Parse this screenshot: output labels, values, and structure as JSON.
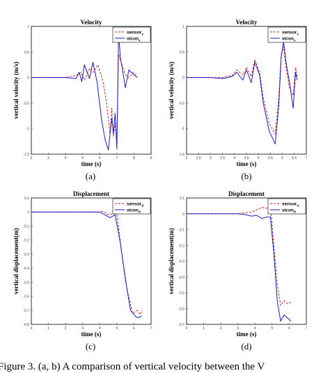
{
  "chart_data": [
    {
      "type": "line",
      "title": "Velocity",
      "panel_label": "(a)",
      "xlabel": "time (s)",
      "ylabel": "vertical velocity (m/s)",
      "xlim": [
        2,
        9
      ],
      "ylim": [
        -1.5,
        1
      ],
      "xticks": [
        "2",
        "3",
        "4",
        "5",
        "6",
        "7",
        "8",
        "9"
      ],
      "yticks": [
        "1",
        "0.5",
        "0",
        "-0.5",
        "-1",
        "-1.5"
      ],
      "ytick_values": [
        1,
        0.5,
        0,
        -0.5,
        -1,
        -1.5
      ],
      "legend": "top-right",
      "series": [
        {
          "name": "sensor",
          "sub": "v",
          "color": "#d62020",
          "dash": "3,2",
          "x": [
            2,
            3,
            4,
            4.6,
            4.9,
            5.1,
            5.4,
            5.6,
            5.9,
            6.2,
            6.4,
            6.6,
            6.7,
            6.8,
            6.9,
            7,
            7.1,
            7.3,
            7.5,
            7.7,
            8,
            8.2
          ],
          "y": [
            0,
            0,
            0,
            0.04,
            0.1,
            -0.05,
            0.18,
            0.1,
            0.25,
            -0.1,
            -0.5,
            -1.1,
            -0.6,
            -1.15,
            -0.9,
            -1.2,
            0.45,
            0.25,
            0.05,
            0,
            0.1,
            0
          ]
        },
        {
          "name": "vicon",
          "sub": "v",
          "color": "#1a1acc",
          "dash": "",
          "x": [
            2,
            3,
            4,
            4.6,
            4.8,
            4.95,
            5.1,
            5.4,
            5.6,
            5.85,
            6.1,
            6.3,
            6.5,
            6.7,
            6.8,
            6.9,
            7,
            7.1,
            7.2,
            7.35,
            7.5,
            7.7,
            8,
            8.2
          ],
          "y": [
            0,
            0,
            0,
            -0.02,
            0.1,
            -0.08,
            0.25,
            -0.02,
            0.3,
            -0.1,
            -0.8,
            -1.2,
            -1.42,
            -0.8,
            -1.1,
            -0.7,
            -1.4,
            0.9,
            0.4,
            0.1,
            -0.2,
            0.15,
            0.05,
            0
          ]
        }
      ]
    },
    {
      "type": "line",
      "title": "Velocity",
      "panel_label": "(b)",
      "xlabel": "time (s)",
      "ylabel": "vertical velocity (m/s)",
      "xlim": [
        2,
        7
      ],
      "ylim": [
        -1.5,
        1
      ],
      "xticks": [
        "2",
        "2.5",
        "3",
        "3.5",
        "4",
        "4.5",
        "5",
        "5.5",
        "6",
        "6.5",
        "7"
      ],
      "yticks": [
        "1",
        "0.5",
        "0",
        "-0.5",
        "-1",
        "-1.5"
      ],
      "ytick_values": [
        1,
        0.5,
        0,
        -0.5,
        -1,
        -1.5
      ],
      "legend": "top-right",
      "series": [
        {
          "name": "sensor",
          "sub": "v",
          "color": "#d62020",
          "dash": "3,2",
          "x": [
            2,
            3,
            3.5,
            3.9,
            4.1,
            4.35,
            4.5,
            4.7,
            4.85,
            5.05,
            5.2,
            5.45,
            5.7,
            5.85,
            5.95,
            6.05,
            6.15,
            6.3,
            6.45,
            6.55,
            6.62
          ],
          "y": [
            0,
            0,
            0,
            0.04,
            0.15,
            0.05,
            0.2,
            0.02,
            0.35,
            0.1,
            -0.4,
            -0.9,
            -1.1,
            -0.4,
            0.45,
            0.6,
            0.2,
            -0.2,
            -0.35,
            0.2,
            0
          ]
        },
        {
          "name": "vicon",
          "sub": "v",
          "color": "#1a1acc",
          "dash": "",
          "x": [
            2,
            3,
            3.5,
            3.9,
            4.1,
            4.35,
            4.5,
            4.7,
            4.85,
            5.05,
            5.2,
            5.45,
            5.7,
            5.85,
            5.95,
            6.05,
            6.15,
            6.3,
            6.45,
            6.55,
            6.62
          ],
          "y": [
            0,
            0,
            -0.02,
            0.02,
            0.1,
            -0.05,
            0.15,
            -0.1,
            0.3,
            0.05,
            -0.5,
            -1.05,
            -1.3,
            -0.55,
            0.4,
            0.7,
            0.3,
            -0.1,
            -0.6,
            0.1,
            -0.05
          ]
        }
      ]
    },
    {
      "type": "line",
      "title": "Displacement",
      "panel_label": "(c)",
      "xlabel": "time (s)",
      "ylabel": "vertical displacement(m)",
      "xlim": [
        0,
        7
      ],
      "ylim": [
        -0.8,
        0.1
      ],
      "xticks": [
        "0",
        "1",
        "2",
        "3",
        "4",
        "5",
        "6",
        "7"
      ],
      "yticks": [
        "0.1",
        "0",
        "-0.1",
        "-0.2",
        "-0.3",
        "-0.4",
        "-0.5",
        "-0.6",
        "-0.7",
        "-0.8"
      ],
      "ytick_values": [
        0.1,
        0,
        -0.1,
        -0.2,
        -0.3,
        -0.4,
        -0.5,
        -0.6,
        -0.7,
        -0.8
      ],
      "legend": "top-right",
      "series": [
        {
          "name": "sensor",
          "sub": "d",
          "color": "#d62020",
          "dash": "3,2",
          "x": [
            0,
            1,
            2,
            3,
            4,
            4.2,
            4.5,
            4.8,
            5.0,
            5.3,
            5.6,
            5.9,
            6.2,
            6.35,
            6.5
          ],
          "y": [
            0,
            0,
            0,
            0,
            0,
            0.005,
            -0.02,
            -0.01,
            -0.02,
            -0.3,
            -0.55,
            -0.72,
            -0.7,
            -0.73,
            -0.7
          ]
        },
        {
          "name": "vicon",
          "sub": "d",
          "color": "#1a1acc",
          "dash": "",
          "x": [
            0,
            1,
            2,
            3,
            4,
            4.3,
            4.6,
            4.9,
            5.2,
            5.5,
            5.8,
            6.0,
            6.15,
            6.3,
            6.45
          ],
          "y": [
            0,
            0,
            0,
            0,
            0,
            -0.02,
            -0.04,
            -0.02,
            -0.22,
            -0.48,
            -0.7,
            -0.73,
            -0.75,
            -0.75,
            -0.74
          ]
        }
      ]
    },
    {
      "type": "line",
      "title": "Displacement",
      "panel_label": "(d)",
      "xlabel": "time (s)",
      "ylabel": "vertical displacement(m)",
      "xlim": [
        0,
        7
      ],
      "ylim": [
        -0.7,
        0.1
      ],
      "xticks": [
        "0",
        "1",
        "2",
        "3",
        "4",
        "5",
        "6",
        "7"
      ],
      "yticks": [
        "0.1",
        "0",
        "-0.1",
        "-0.2",
        "-0.3",
        "-0.4",
        "-0.5",
        "-0.6",
        "-0.7"
      ],
      "ytick_values": [
        0.1,
        0,
        -0.1,
        -0.2,
        -0.3,
        -0.4,
        -0.5,
        -0.6,
        -0.7
      ],
      "legend": "top-right",
      "series": [
        {
          "name": "sensor",
          "sub": "d",
          "color": "#d62020",
          "dash": "3,2",
          "x": [
            0,
            1,
            2,
            3,
            3.4,
            3.8,
            4.1,
            4.4,
            4.7,
            4.9,
            5.1,
            5.3,
            5.5,
            5.7,
            5.9,
            6.1
          ],
          "y": [
            0,
            0,
            0,
            0,
            0.005,
            0.01,
            0.025,
            0.04,
            0.035,
            0.05,
            -0.2,
            -0.45,
            -0.58,
            -0.55,
            -0.57,
            -0.56
          ]
        },
        {
          "name": "vicon",
          "sub": "d",
          "color": "#1a1acc",
          "dash": "",
          "x": [
            0,
            1,
            2,
            3,
            3.4,
            3.8,
            4.1,
            4.4,
            4.7,
            4.9,
            5.1,
            5.3,
            5.5,
            5.7,
            5.9,
            6.1
          ],
          "y": [
            0,
            0,
            0,
            0,
            -0.005,
            -0.015,
            -0.01,
            -0.03,
            -0.02,
            -0.02,
            -0.25,
            -0.55,
            -0.68,
            -0.64,
            -0.66,
            -0.68
          ]
        }
      ]
    }
  ],
  "caption": "Figure 3. (a, b) A comparison of vertical velocity between the V"
}
